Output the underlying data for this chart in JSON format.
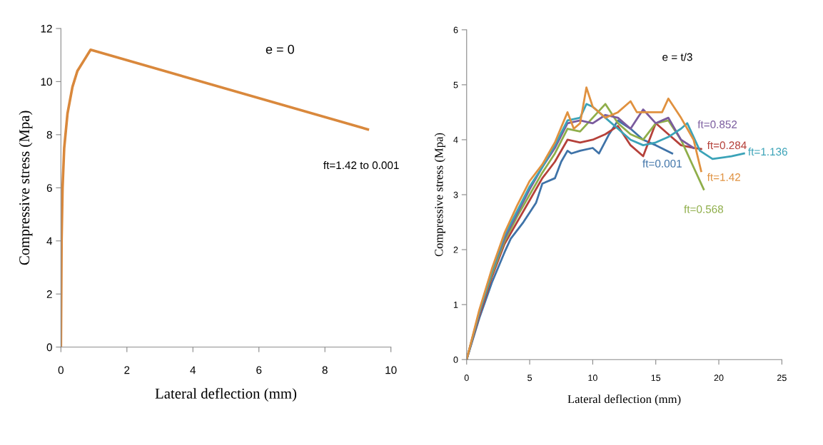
{
  "chart_data": [
    {
      "type": "line",
      "xlabel": "Lateral deflection (mm)",
      "ylabel": "Compressive stress (Mpa)",
      "annotations": [
        "e = 0"
      ],
      "xlim": [
        0,
        10
      ],
      "ylim": [
        0,
        12
      ],
      "xticks": [
        0,
        2,
        4,
        6,
        8,
        10
      ],
      "yticks": [
        0,
        2,
        4,
        6,
        8,
        10,
        12
      ],
      "grid": false,
      "legend": false,
      "series": [
        {
          "name": "ft=1.42 to 0.001",
          "color": "#d9883c",
          "x": [
            0,
            0.02,
            0.05,
            0.1,
            0.2,
            0.35,
            0.5,
            0.7,
            0.9,
            9.3
          ],
          "values": [
            0,
            4,
            6,
            7.5,
            8.8,
            9.8,
            10.4,
            10.8,
            11.2,
            8.2
          ]
        }
      ]
    },
    {
      "type": "line",
      "xlabel": "Lateral deflection (mm)",
      "ylabel": "Compressive stress (Mpa)",
      "annotations": [
        "e = t/3"
      ],
      "xlim": [
        0,
        25
      ],
      "ylim": [
        0,
        6
      ],
      "xticks": [
        0,
        5,
        10,
        15,
        20,
        25
      ],
      "yticks": [
        0,
        1,
        2,
        3,
        4,
        5,
        6
      ],
      "grid": false,
      "legend": false,
      "series": [
        {
          "name": "ft=0.001",
          "color": "#3f73a8",
          "x": [
            0,
            1,
            2,
            3,
            3.5,
            4.5,
            5.5,
            6,
            7,
            7.5,
            8,
            8.3,
            9,
            10,
            10.5,
            11.3,
            12,
            13,
            14,
            15,
            16.3
          ],
          "values": [
            0,
            0.75,
            1.4,
            1.95,
            2.2,
            2.5,
            2.85,
            3.2,
            3.3,
            3.6,
            3.8,
            3.75,
            3.8,
            3.85,
            3.75,
            4.1,
            4.35,
            4.2,
            4.0,
            3.9,
            3.75
          ]
        },
        {
          "name": "ft=0.284",
          "color": "#b5413a",
          "x": [
            0,
            1,
            2,
            3,
            4,
            5,
            6,
            7,
            8,
            9,
            10,
            11,
            12,
            13,
            14,
            15,
            16,
            17,
            18,
            18.6
          ],
          "values": [
            0,
            0.8,
            1.5,
            2.1,
            2.5,
            2.9,
            3.3,
            3.6,
            4.0,
            3.95,
            4.0,
            4.1,
            4.25,
            3.9,
            3.7,
            4.3,
            4.1,
            3.9,
            3.85,
            3.83
          ]
        },
        {
          "name": "ft=0.568",
          "color": "#8fae4a",
          "x": [
            0,
            1,
            2,
            3,
            4,
            5,
            6,
            7,
            8,
            9,
            10,
            11,
            12,
            13,
            14,
            15,
            16,
            17,
            18,
            18.8
          ],
          "values": [
            0,
            0.85,
            1.55,
            2.15,
            2.6,
            3.0,
            3.4,
            3.75,
            4.2,
            4.15,
            4.4,
            4.65,
            4.3,
            4.1,
            4.0,
            4.3,
            4.35,
            4.0,
            3.5,
            3.1
          ]
        },
        {
          "name": "ft=0.852",
          "color": "#7a5b9e",
          "x": [
            0,
            1,
            2,
            3,
            4,
            5,
            6,
            7,
            8,
            9,
            10,
            11,
            12,
            13,
            14,
            15,
            16,
            17,
            18
          ],
          "values": [
            0,
            0.85,
            1.6,
            2.2,
            2.65,
            3.1,
            3.5,
            3.85,
            4.3,
            4.35,
            4.3,
            4.45,
            4.4,
            4.2,
            4.55,
            4.3,
            4.4,
            4.0,
            3.85
          ]
        },
        {
          "name": "ft=1.136",
          "color": "#3ba3b8",
          "x": [
            0,
            1,
            2,
            3,
            4,
            5,
            6,
            7,
            8,
            9,
            9.5,
            10,
            11,
            12,
            13,
            14,
            15,
            16,
            17,
            17.5,
            18.5,
            19.5,
            21,
            22
          ],
          "values": [
            0,
            0.85,
            1.6,
            2.25,
            2.7,
            3.15,
            3.5,
            3.9,
            4.35,
            4.4,
            4.65,
            4.6,
            4.4,
            4.2,
            4.0,
            3.9,
            3.95,
            4.05,
            4.2,
            4.3,
            3.8,
            3.65,
            3.7,
            3.75
          ]
        },
        {
          "name": "ft=1.42",
          "color": "#e0913f",
          "x": [
            0,
            1,
            2,
            3,
            4,
            5,
            6,
            7,
            8,
            8.5,
            9,
            9.5,
            10,
            11,
            12,
            13,
            13.5,
            14,
            15.5,
            16,
            17,
            18,
            18.6
          ],
          "values": [
            0,
            0.9,
            1.65,
            2.3,
            2.8,
            3.25,
            3.55,
            3.95,
            4.5,
            4.2,
            4.3,
            4.95,
            4.6,
            4.4,
            4.5,
            4.7,
            4.5,
            4.5,
            4.5,
            4.75,
            4.4,
            4.0,
            3.43
          ]
        }
      ]
    }
  ]
}
